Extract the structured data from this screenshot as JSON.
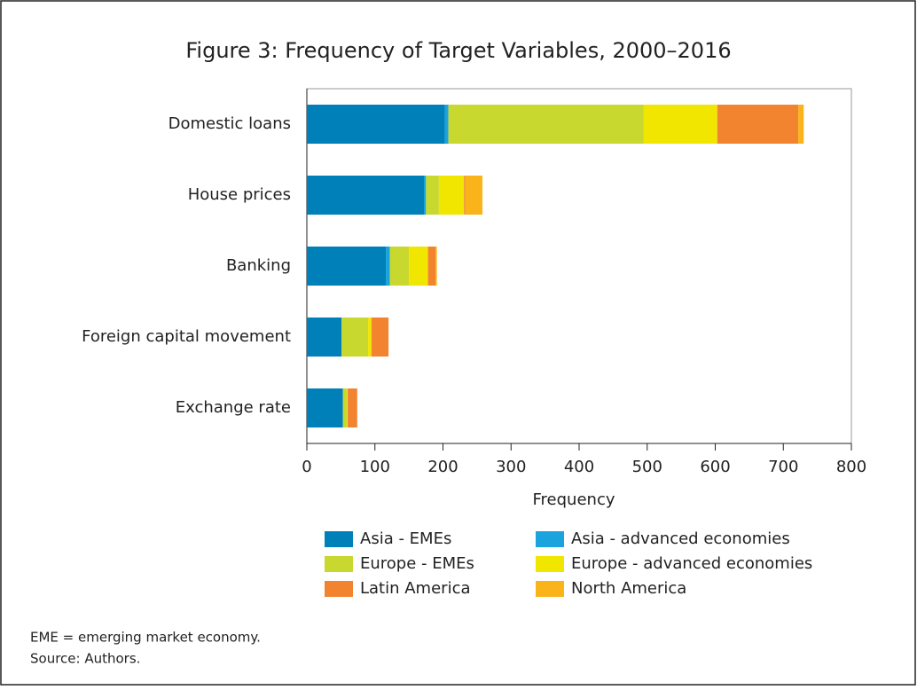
{
  "chart_data": {
    "type": "stacked-bar-horizontal",
    "title": "Figure 3: Frequency of Target Variables, 2000–2016",
    "x_label": "Frequency",
    "categories": [
      "Domestic loans",
      "House prices",
      "Banking",
      "Foreign capital movement",
      "Exchange rate"
    ],
    "series": [
      {
        "name": "Asia - EMEs",
        "color": "#0080b8",
        "values": [
          203,
          172,
          116,
          51,
          53
        ]
      },
      {
        "name": "Asia - advanced economies",
        "color": "#1aa3dc",
        "values": [
          5,
          3,
          6,
          0,
          0
        ]
      },
      {
        "name": "Europe - EMEs",
        "color": "#c8d82e",
        "values": [
          287,
          19,
          28,
          39,
          6
        ]
      },
      {
        "name": "Europe - advanced economies",
        "color": "#f0e600",
        "values": [
          108,
          37,
          28,
          5,
          1
        ]
      },
      {
        "name": "Latin America",
        "color": "#f28430",
        "values": [
          119,
          2,
          11,
          25,
          14
        ]
      },
      {
        "name": "North America",
        "color": "#fbb31a",
        "values": [
          8,
          25,
          2,
          0,
          0
        ]
      }
    ],
    "xlim": [
      0,
      800
    ],
    "xticks": [
      0,
      100,
      200,
      300,
      400,
      500,
      600,
      700,
      800
    ],
    "notes": [
      "EME = emerging market economy.",
      "Source: Authors."
    ]
  }
}
